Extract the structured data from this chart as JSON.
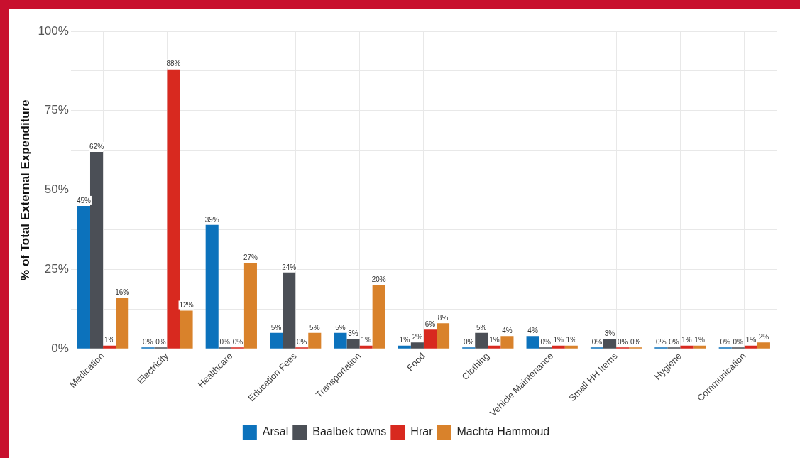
{
  "chart_data": {
    "type": "bar",
    "ylabel": "% of Total External Expenditure",
    "categories": [
      "Medication",
      "Electricity",
      "Healthcare",
      "Education Fees",
      "Transportation",
      "Food",
      "Clothing",
      "Vehicle Maintenance",
      "Small HH Items",
      "Hygiene",
      "Communication"
    ],
    "series": [
      {
        "name": "Arsal",
        "color": "#0c72bc",
        "values": [
          45,
          0,
          39,
          5,
          5,
          1,
          0,
          4,
          0,
          0,
          0
        ],
        "value_labels": [
          "45%",
          "0%",
          "39%",
          "5%",
          "5%",
          "1%",
          "0%",
          "4%",
          "0%",
          "0%",
          "0%"
        ]
      },
      {
        "name": "Baalbek towns",
        "color": "#4b4f56",
        "values": [
          62,
          0,
          0,
          24,
          3,
          2,
          5,
          0,
          3,
          0,
          0
        ],
        "value_labels": [
          "62%",
          "0%",
          "0%",
          "24%",
          "3%",
          "2%",
          "5%",
          "0%",
          "3%",
          "0%",
          "0%"
        ]
      },
      {
        "name": "Hrar",
        "color": "#d8291f",
        "values": [
          1,
          88,
          0,
          0,
          1,
          6,
          1,
          1,
          0,
          1,
          1
        ],
        "value_labels": [
          "1%",
          "88%",
          "0%",
          "0%",
          "1%",
          "6%",
          "1%",
          "1%",
          "0%",
          "1%",
          "1%"
        ]
      },
      {
        "name": "Machta Hammoud",
        "color": "#d9822b",
        "values": [
          16,
          12,
          27,
          5,
          20,
          8,
          4,
          1,
          0,
          1,
          2
        ],
        "value_labels": [
          "16%",
          "12%",
          "27%",
          "5%",
          "20%",
          "8%",
          "4%",
          "1%",
          "0%",
          "1%",
          "2%"
        ]
      }
    ],
    "ylim": [
      0,
      100
    ],
    "yticks": [
      {
        "value": 0,
        "label": "0%"
      },
      {
        "value": 12.5,
        "label": null
      },
      {
        "value": 25,
        "label": "25%"
      },
      {
        "value": 37.5,
        "label": null
      },
      {
        "value": 50,
        "label": "50%"
      },
      {
        "value": 62.5,
        "label": null
      },
      {
        "value": 75,
        "label": "75%"
      },
      {
        "value": 87.5,
        "label": null
      },
      {
        "value": 100,
        "label": "100%"
      }
    ],
    "grid": true,
    "legend": "bottom"
  }
}
